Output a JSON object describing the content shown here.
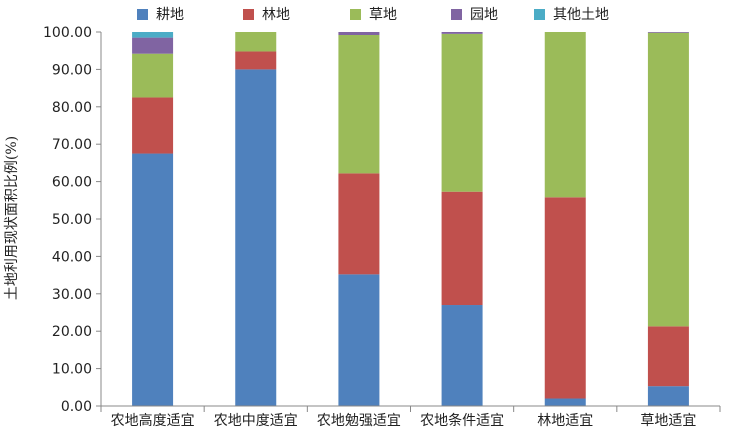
{
  "chart_data": {
    "type": "bar",
    "stacked": true,
    "categories": [
      "农地高度适宜",
      "农地中度适宜",
      "农地勉强适宜",
      "农地条件适宜",
      "林地适宜",
      "草地适宜"
    ],
    "series": [
      {
        "name": "耕地",
        "color": "#4f81bd",
        "values": [
          67.5,
          90.0,
          35.2,
          27.0,
          2.0,
          5.3
        ]
      },
      {
        "name": "林地",
        "color": "#c0504d",
        "values": [
          15.0,
          4.8,
          27.0,
          30.3,
          53.8,
          16.0
        ]
      },
      {
        "name": "草地",
        "color": "#9bbb59",
        "values": [
          11.7,
          5.2,
          37.0,
          42.2,
          44.2,
          78.5
        ]
      },
      {
        "name": "园地",
        "color": "#8064a2",
        "values": [
          4.3,
          0.0,
          0.8,
          0.5,
          0.0,
          0.2
        ]
      },
      {
        "name": "其他土地",
        "color": "#4bacc6",
        "values": [
          1.5,
          0.0,
          0.0,
          0.0,
          0.0,
          0.0
        ]
      }
    ],
    "ylabel": "土地利用现状面积比例(%)",
    "ylim": [
      0,
      100
    ],
    "yticks": [
      "0.00",
      "10.00",
      "20.00",
      "30.00",
      "40.00",
      "50.00",
      "60.00",
      "70.00",
      "80.00",
      "90.00",
      "100.00"
    ],
    "grid": false,
    "legend_position": "top"
  }
}
